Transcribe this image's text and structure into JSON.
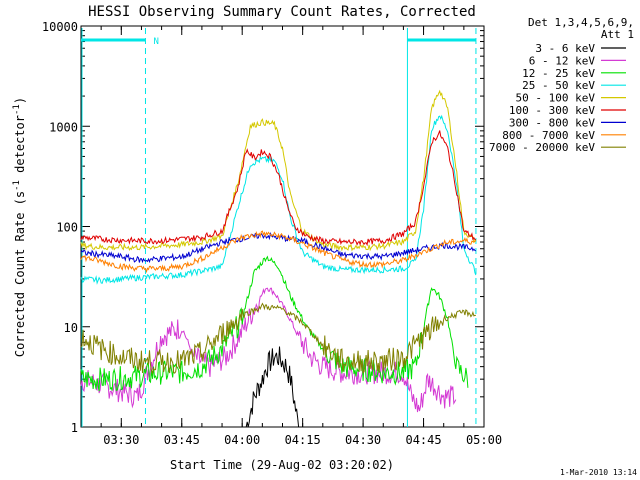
{
  "chart_data": {
    "type": "line",
    "title": "HESSI Observing Summary Count Rates, Corrected",
    "xlabel": "Start Time (29-Aug-02 03:20:02)",
    "ylabel": "Corrected Count Rate (s",
    "ylabel_sup1": "-1",
    "ylabel_mid": " detector",
    "ylabel_sup2": "-1",
    "ylabel_end": ")",
    "y_scale": "log",
    "ylim": [
      1,
      10000
    ],
    "y_ticks": [
      1,
      10,
      100,
      1000,
      10000
    ],
    "y_tick_labels": [
      "1",
      "10",
      "100",
      "1000",
      "10000"
    ],
    "xlim": [
      "03:20",
      "05:00"
    ],
    "x_ticks": [
      "03:30",
      "03:45",
      "04:00",
      "04:15",
      "04:30",
      "04:45",
      "05:00"
    ],
    "x_tick_labels": [
      "03:30",
      "03:45",
      "04:00",
      "04:15",
      "04:30",
      "04:45",
      "05:00"
    ],
    "legend_placement": "outside-right",
    "legend_header": [
      "Det 1,3,4,5,6,9,",
      "Att 1"
    ],
    "night_marker": "N",
    "night_start": "03:36",
    "night_end": "04:41",
    "night_end2": "04:58",
    "footer": "1-Mar-2010 13:14",
    "series": [
      {
        "name": "3 - 6 keV",
        "color": "#000000",
        "times": [
          "04:01",
          "04:03",
          "04:05",
          "04:06",
          "04:08",
          "04:09",
          "04:11",
          "04:12",
          "04:14"
        ],
        "values": [
          1,
          2,
          3,
          4,
          5,
          5,
          4,
          3,
          1
        ]
      },
      {
        "name": "6 - 12 keV",
        "color": "#d43bd4",
        "times": [
          "03:20",
          "03:27",
          "03:34",
          "03:40",
          "03:45",
          "03:48",
          "03:52",
          "03:56",
          "04:00",
          "04:04",
          "04:06",
          "04:08",
          "04:11",
          "04:14",
          "04:17",
          "04:20",
          "04:25",
          "04:35",
          "04:40",
          "04:42",
          "04:44",
          "04:46",
          "04:48",
          "04:50",
          "04:53"
        ],
        "values": [
          3,
          2.5,
          2,
          8,
          10,
          5,
          4,
          5,
          9,
          18,
          25,
          22,
          14,
          8,
          5,
          4,
          3.5,
          3.5,
          3.5,
          2,
          1.5,
          3,
          2.5,
          2,
          2
        ]
      },
      {
        "name": "12 - 25 keV",
        "color": "#00e000",
        "times": [
          "03:20",
          "03:27",
          "03:34",
          "03:40",
          "03:45",
          "03:50",
          "03:55",
          "04:00",
          "04:03",
          "04:06",
          "04:09",
          "04:12",
          "04:16",
          "04:20",
          "04:25",
          "04:35",
          "04:40",
          "04:43",
          "04:45",
          "04:47",
          "04:49",
          "04:51",
          "04:53",
          "04:56"
        ],
        "values": [
          3,
          3,
          3.2,
          3.5,
          3.5,
          4,
          6,
          12,
          35,
          50,
          40,
          20,
          10,
          6,
          4,
          3.5,
          3.5,
          4,
          10,
          25,
          20,
          12,
          4,
          3
        ]
      },
      {
        "name": "25 - 50 keV",
        "color": "#00e6e6",
        "times": [
          "03:20",
          "03:25",
          "03:30",
          "03:35",
          "03:40",
          "03:45",
          "03:50",
          "03:55",
          "03:59",
          "04:02",
          "04:05",
          "04:08",
          "04:10",
          "04:12",
          "04:15",
          "04:20",
          "04:25",
          "04:30",
          "04:35",
          "04:40",
          "04:43",
          "04:45",
          "04:47",
          "04:49",
          "04:51",
          "04:53",
          "04:55",
          "04:58"
        ],
        "values": [
          30,
          29,
          30,
          31,
          32,
          33,
          36,
          40,
          160,
          420,
          470,
          450,
          300,
          120,
          55,
          40,
          37,
          37,
          37,
          38,
          45,
          150,
          950,
          1300,
          900,
          300,
          60,
          35
        ]
      },
      {
        "name": "50 - 100 keV",
        "color": "#d4c800",
        "times": [
          "03:20",
          "03:25",
          "03:30",
          "03:35",
          "03:40",
          "03:45",
          "03:50",
          "03:55",
          "03:59",
          "04:02",
          "04:05",
          "04:08",
          "04:10",
          "04:12",
          "04:15",
          "04:20",
          "04:25",
          "04:30",
          "04:35",
          "04:40",
          "04:43",
          "04:45",
          "04:47",
          "04:49",
          "04:51",
          "04:53",
          "04:55",
          "04:58"
        ],
        "values": [
          65,
          62,
          62,
          62,
          64,
          66,
          70,
          80,
          280,
          1000,
          1100,
          1050,
          600,
          200,
          90,
          66,
          62,
          62,
          64,
          70,
          90,
          300,
          1500,
          2300,
          1500,
          400,
          90,
          70
        ]
      },
      {
        "name": "100 - 300 keV",
        "color": "#e00000",
        "times": [
          "03:20",
          "03:25",
          "03:30",
          "03:35",
          "03:40",
          "03:45",
          "03:50",
          "03:55",
          "03:59",
          "04:01",
          "04:03",
          "04:05",
          "04:07",
          "04:09",
          "04:11",
          "04:13",
          "04:16",
          "04:20",
          "04:25",
          "04:30",
          "04:35",
          "04:40",
          "04:43",
          "04:45",
          "04:47",
          "04:49",
          "04:51",
          "04:53",
          "04:55",
          "04:58"
        ],
        "values": [
          78,
          75,
          73,
          72,
          72,
          75,
          78,
          90,
          250,
          580,
          480,
          560,
          500,
          330,
          170,
          100,
          80,
          72,
          70,
          70,
          72,
          85,
          110,
          250,
          700,
          850,
          600,
          250,
          90,
          75
        ]
      },
      {
        "name": "300 - 800 keV",
        "color": "#0000d0",
        "times": [
          "03:20",
          "03:30",
          "03:35",
          "03:45",
          "03:55",
          "04:05",
          "04:15",
          "04:25",
          "04:35",
          "04:45",
          "04:50",
          "04:55",
          "04:58"
        ],
        "values": [
          55,
          50,
          46,
          50,
          70,
          82,
          72,
          52,
          50,
          60,
          65,
          62,
          60
        ]
      },
      {
        "name": "800 - 7000 keV",
        "color": "#ff8000",
        "times": [
          "03:20",
          "03:25",
          "03:30",
          "03:35",
          "03:40",
          "03:45",
          "03:50",
          "03:55",
          "04:00",
          "04:05",
          "04:10",
          "04:15",
          "04:20",
          "04:25",
          "04:30",
          "04:35",
          "04:40",
          "04:45",
          "04:50",
          "04:55",
          "04:58"
        ],
        "values": [
          50,
          45,
          40,
          38,
          38,
          40,
          48,
          62,
          78,
          85,
          80,
          68,
          55,
          46,
          42,
          42,
          46,
          56,
          68,
          72,
          70
        ]
      },
      {
        "name": "7000 - 20000 keV",
        "color": "#808000",
        "times": [
          "03:20",
          "03:25",
          "03:30",
          "03:35",
          "03:40",
          "03:45",
          "03:50",
          "03:55",
          "04:00",
          "04:05",
          "04:10",
          "04:15",
          "04:20",
          "04:25",
          "04:30",
          "04:35",
          "04:40",
          "04:45",
          "04:50",
          "04:55",
          "04:58"
        ],
        "values": [
          8,
          6,
          5,
          4.5,
          4.5,
          4.5,
          5.5,
          8.5,
          13,
          16,
          15,
          11,
          6.5,
          4.5,
          4.5,
          4.5,
          5,
          8,
          12,
          14,
          13
        ]
      }
    ]
  }
}
